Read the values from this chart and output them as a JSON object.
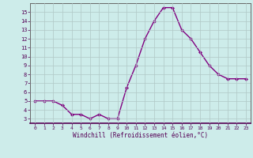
{
  "x": [
    0,
    1,
    2,
    3,
    4,
    5,
    6,
    7,
    8,
    9,
    10,
    11,
    12,
    13,
    14,
    15,
    16,
    17,
    18,
    19,
    20,
    21,
    22,
    23
  ],
  "y": [
    5.0,
    5.0,
    5.0,
    4.5,
    3.5,
    3.5,
    3.0,
    3.5,
    3.0,
    3.0,
    6.5,
    9.0,
    12.0,
    14.0,
    15.5,
    15.5,
    13.0,
    12.0,
    10.5,
    9.0,
    8.0,
    7.5,
    7.5,
    7.5
  ],
  "xlim": [
    -0.5,
    23.5
  ],
  "ylim": [
    2.5,
    16.0
  ],
  "xtick_labels": [
    "0",
    "1",
    "2",
    "3",
    "4",
    "5",
    "6",
    "7",
    "8",
    "9",
    "10",
    "11",
    "12",
    "13",
    "14",
    "15",
    "16",
    "17",
    "18",
    "19",
    "20",
    "21",
    "22",
    "23"
  ],
  "ytick_values": [
    3,
    4,
    5,
    6,
    7,
    8,
    9,
    10,
    11,
    12,
    13,
    14,
    15
  ],
  "xlabel": "Windchill (Refroidissement éolien,°C)",
  "line_color": "#800080",
  "marker": "D",
  "marker_size": 2.0,
  "line_width": 1.0,
  "bg_color": "#cdecea",
  "grid_color": "#b0c8c6",
  "axis_color": "#666666"
}
